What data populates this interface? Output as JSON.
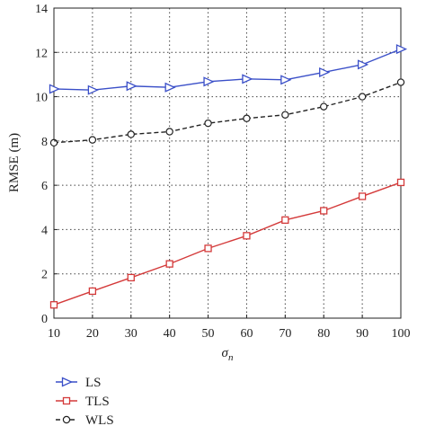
{
  "chart_data": {
    "type": "line",
    "x": [
      10,
      20,
      30,
      40,
      50,
      60,
      70,
      80,
      90,
      100
    ],
    "xlim": [
      10,
      100
    ],
    "ylim": [
      0,
      14
    ],
    "xticks": [
      "10",
      "20",
      "30",
      "40",
      "50",
      "60",
      "70",
      "80",
      "90",
      "100"
    ],
    "yticks": [
      "0",
      "2",
      "4",
      "6",
      "8",
      "10",
      "12",
      "14"
    ],
    "xlabel": "σn",
    "ylabel": "RMSE (m)",
    "grid": true,
    "legend_position": "bottom-left, below plot",
    "series": [
      {
        "name": "LS",
        "color": "#3a4fc8",
        "marker": "triangle-right",
        "line": "solid",
        "values": [
          10.35,
          10.3,
          10.48,
          10.42,
          10.68,
          10.8,
          10.76,
          11.1,
          11.45,
          12.15
        ]
      },
      {
        "name": "TLS",
        "color": "#d43a3a",
        "marker": "square",
        "line": "solid",
        "values": [
          0.6,
          1.22,
          1.83,
          2.45,
          3.15,
          3.72,
          4.43,
          4.85,
          5.5,
          6.13
        ]
      },
      {
        "name": "WLS",
        "color": "#222222",
        "marker": "circle",
        "line": "dashed",
        "values": [
          7.92,
          8.05,
          8.3,
          8.42,
          8.8,
          9.02,
          9.18,
          9.55,
          10.0,
          10.65
        ]
      }
    ]
  }
}
